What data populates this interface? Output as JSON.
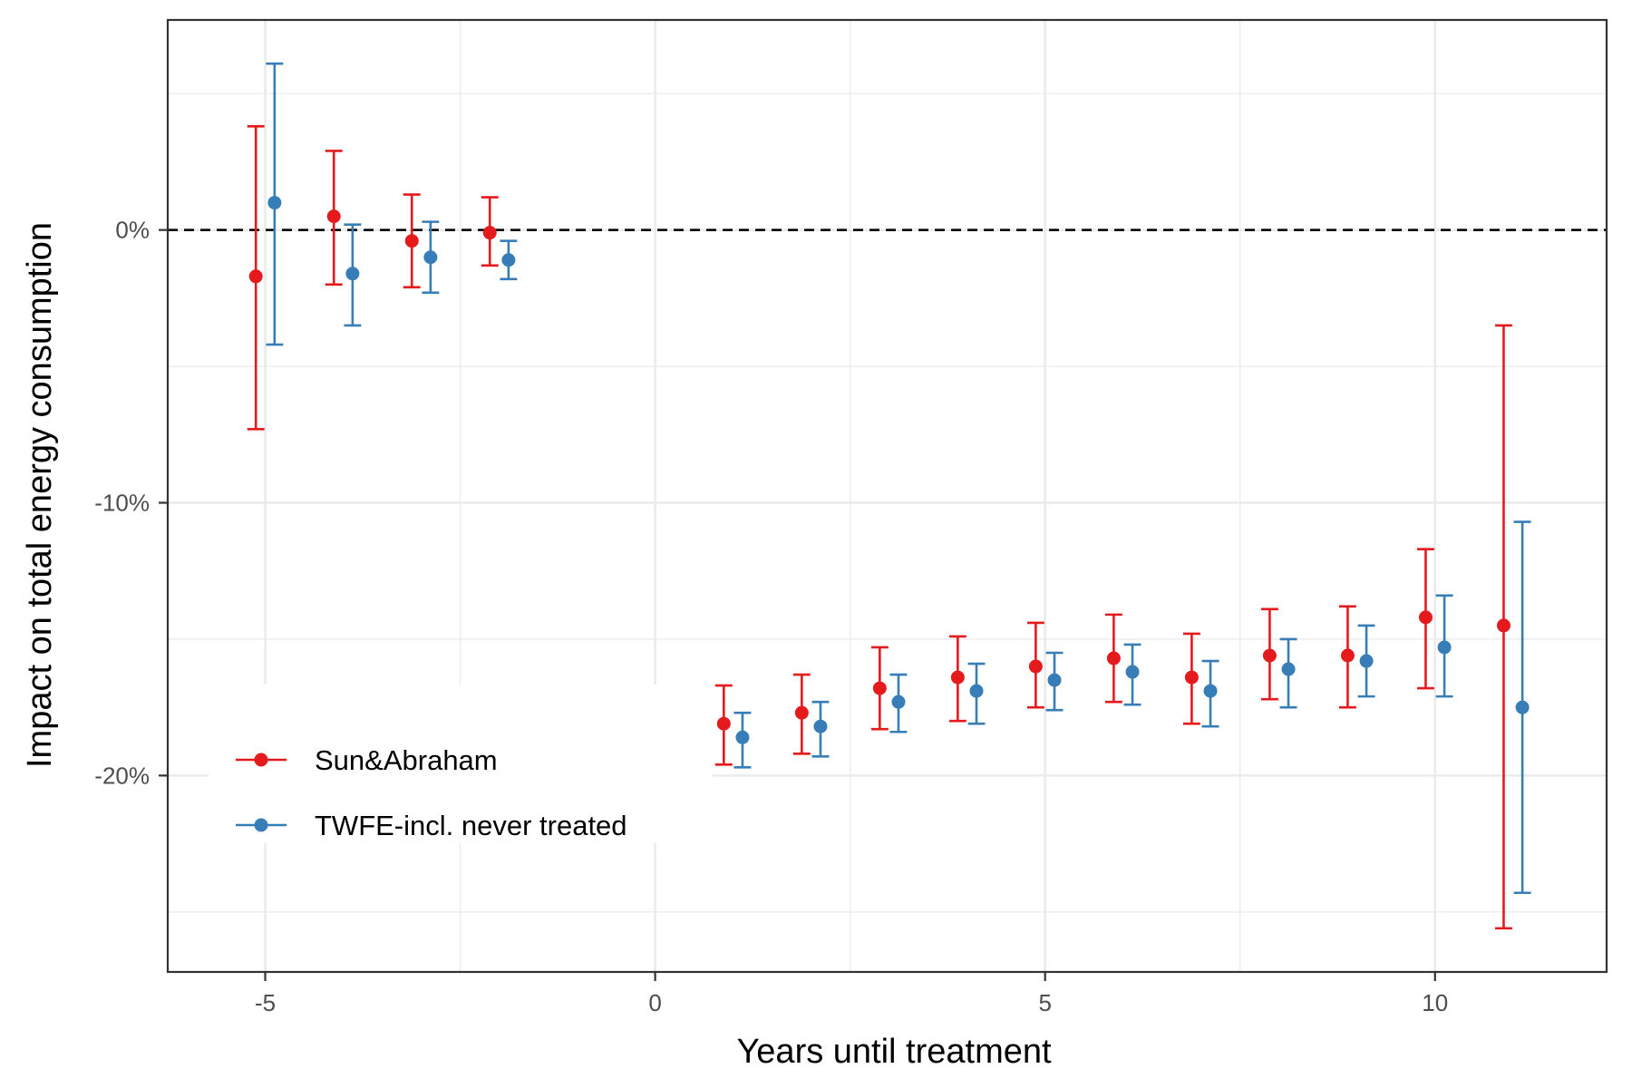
{
  "chart_data": {
    "type": "scatter",
    "title": "",
    "xlabel": "Years until treatment",
    "ylabel": "Impact on total energy consumption",
    "xlim": [
      -6.25,
      12.2
    ],
    "ylim": [
      -27.2,
      7.7
    ],
    "x_ticks": [
      {
        "value": -5,
        "label": "-5"
      },
      {
        "value": 0,
        "label": "0"
      },
      {
        "value": 5,
        "label": "5"
      },
      {
        "value": 10,
        "label": "10"
      }
    ],
    "y_ticks": [
      {
        "value": 0,
        "label": "0%"
      },
      {
        "value": -10,
        "label": "-10%"
      },
      {
        "value": -20,
        "label": "-20%"
      }
    ],
    "x_minor_grid": [
      -2.5,
      2.5,
      7.5
    ],
    "y_minor_grid": [
      5,
      -5,
      -15,
      -25
    ],
    "grid": true,
    "reference_line": {
      "y": 0,
      "style": "dashed",
      "color": "#000000"
    },
    "legend": {
      "position": "bottom-left"
    },
    "series": [
      {
        "name": "Sun&Abraham",
        "color": "#E41A1C",
        "points": [
          {
            "x": -5,
            "y": -1.7,
            "lo": -7.3,
            "hi": 3.8
          },
          {
            "x": -4,
            "y": 0.5,
            "lo": -2.0,
            "hi": 2.9
          },
          {
            "x": -3,
            "y": -0.4,
            "lo": -2.1,
            "hi": 1.3
          },
          {
            "x": -2,
            "y": -0.1,
            "lo": -1.3,
            "hi": 1.2
          },
          {
            "x": 1,
            "y": -18.1,
            "lo": -19.6,
            "hi": -16.7
          },
          {
            "x": 2,
            "y": -17.7,
            "lo": -19.2,
            "hi": -16.3
          },
          {
            "x": 3,
            "y": -16.8,
            "lo": -18.3,
            "hi": -15.3
          },
          {
            "x": 4,
            "y": -16.4,
            "lo": -18.0,
            "hi": -14.9
          },
          {
            "x": 5,
            "y": -16.0,
            "lo": -17.5,
            "hi": -14.4
          },
          {
            "x": 6,
            "y": -15.7,
            "lo": -17.3,
            "hi": -14.1
          },
          {
            "x": 7,
            "y": -16.4,
            "lo": -18.1,
            "hi": -14.8
          },
          {
            "x": 8,
            "y": -15.6,
            "lo": -17.2,
            "hi": -13.9
          },
          {
            "x": 9,
            "y": -15.6,
            "lo": -17.5,
            "hi": -13.8
          },
          {
            "x": 10,
            "y": -14.2,
            "lo": -16.8,
            "hi": -11.7
          },
          {
            "x": 11,
            "y": -14.5,
            "lo": -25.6,
            "hi": -3.5
          }
        ]
      },
      {
        "name": "TWFE-incl. never treated",
        "color": "#377EB8",
        "points": [
          {
            "x": -5,
            "y": 1.0,
            "lo": -4.2,
            "hi": 6.1
          },
          {
            "x": -4,
            "y": -1.6,
            "lo": -3.5,
            "hi": 0.2
          },
          {
            "x": -3,
            "y": -1.0,
            "lo": -2.3,
            "hi": 0.3
          },
          {
            "x": -2,
            "y": -1.1,
            "lo": -1.8,
            "hi": -0.4
          },
          {
            "x": 1,
            "y": -18.6,
            "lo": -19.7,
            "hi": -17.7
          },
          {
            "x": 2,
            "y": -18.2,
            "lo": -19.3,
            "hi": -17.3
          },
          {
            "x": 3,
            "y": -17.3,
            "lo": -18.4,
            "hi": -16.3
          },
          {
            "x": 4,
            "y": -16.9,
            "lo": -18.1,
            "hi": -15.9
          },
          {
            "x": 5,
            "y": -16.5,
            "lo": -17.6,
            "hi": -15.5
          },
          {
            "x": 6,
            "y": -16.2,
            "lo": -17.4,
            "hi": -15.2
          },
          {
            "x": 7,
            "y": -16.9,
            "lo": -18.2,
            "hi": -15.8
          },
          {
            "x": 8,
            "y": -16.1,
            "lo": -17.5,
            "hi": -15.0
          },
          {
            "x": 9,
            "y": -15.8,
            "lo": -17.1,
            "hi": -14.5
          },
          {
            "x": 10,
            "y": -15.3,
            "lo": -17.1,
            "hi": -13.4
          },
          {
            "x": 11,
            "y": -17.5,
            "lo": -24.3,
            "hi": -10.7
          }
        ]
      }
    ]
  }
}
